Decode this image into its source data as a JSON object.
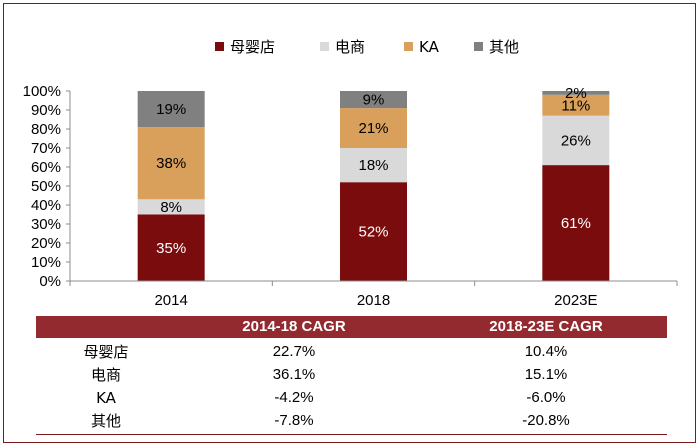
{
  "chart_data": {
    "type": "bar",
    "stacked": true,
    "categories": [
      "2014",
      "2018",
      "2023E"
    ],
    "series": [
      {
        "name": "母婴店",
        "color": "#7a0c0e",
        "values": [
          35,
          52,
          61
        ],
        "labels": [
          "35%",
          "52%",
          "61%"
        ]
      },
      {
        "name": "电商",
        "color": "#d9d9d9",
        "values": [
          8,
          18,
          26
        ],
        "labels": [
          "8%",
          "18%",
          "26%"
        ]
      },
      {
        "name": "KA",
        "color": "#d9a05c",
        "values": [
          38,
          21,
          11
        ],
        "labels": [
          "38%",
          "21%",
          "11%"
        ]
      },
      {
        "name": "其他",
        "color": "#808080",
        "values": [
          19,
          9,
          2
        ],
        "labels": [
          "19%",
          "9%",
          "2%"
        ]
      }
    ],
    "yticks": [
      "0%",
      "10%",
      "20%",
      "30%",
      "40%",
      "50%",
      "60%",
      "70%",
      "80%",
      "90%",
      "100%"
    ],
    "ylim": [
      0,
      100
    ],
    "legend_position": "top-center"
  },
  "cagr_table": {
    "headers": [
      "2014-18 CAGR",
      "2018-23E CAGR"
    ],
    "rows": [
      {
        "label": "母婴店",
        "v1": "22.7%",
        "v2": "10.4%"
      },
      {
        "label": "电商",
        "v1": "36.1%",
        "v2": "15.1%"
      },
      {
        "label": "KA",
        "v1": "-4.2%",
        "v2": "-6.0%"
      },
      {
        "label": "其他",
        "v1": "-7.8%",
        "v2": "-20.8%"
      }
    ]
  }
}
